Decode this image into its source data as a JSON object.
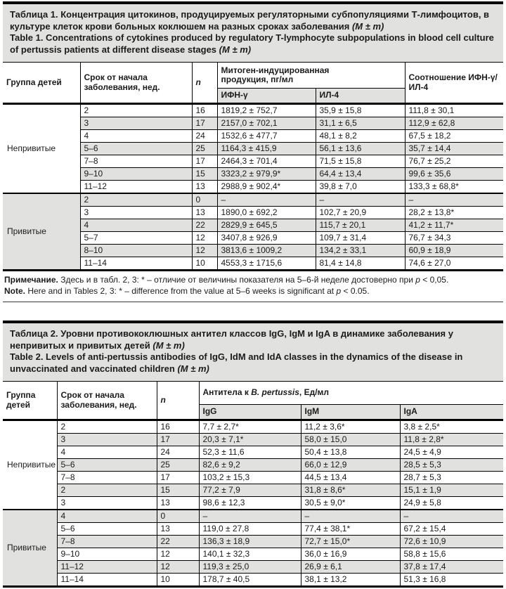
{
  "colors": {
    "shade": "#e1e1e0",
    "rule": "#000000",
    "text": "#1b1b1b",
    "background": "#ffffff"
  },
  "table1": {
    "title_ru": "Таблица 1. Концентрация цитокинов, продуцируемых регуляторными субпопуляциями Т-лимфоцитов, в культуре клеток крови больных коклюшем на разных сроках заболевания",
    "title_ru_mm": "(M ± m)",
    "title_en": "Table 1. Concentrations of cytokines produced by regulatory T-lymphocyte subpopulations in blood cell culture of pertussis patients at different disease stages",
    "title_en_mm": "(M ± m)",
    "header": {
      "group": "Группа детей",
      "term": "Срок от начала заболевания, нед.",
      "n": "n",
      "production": "Митоген-индуцированная продукция, пг/мл",
      "ifn": "ИФН-γ",
      "il4": "ИЛ-4",
      "ratio": "Соотношение ИФН-γ/ИЛ-4"
    },
    "groups": [
      {
        "label": "Непривитые",
        "rows": [
          [
            "2",
            "16",
            "1819,2 ± 752,7",
            "35,9 ± 15,8",
            "111,8 ± 30,1"
          ],
          [
            "3",
            "17",
            "2157,0 ± 702,1",
            "31,1 ± 6,5",
            "112,9 ± 62,8"
          ],
          [
            "4",
            "24",
            "1532,6 ± 477,7",
            "48,1 ± 8,2",
            "67,5 ± 18,2"
          ],
          [
            "5–6",
            "25",
            "1164,3 ± 415,9",
            "56,1 ± 13,6",
            "35,7 ± 14,4"
          ],
          [
            "7–8",
            "17",
            "2464,3 ± 701,4",
            "71,5 ± 15,8",
            "76,7 ± 25,2"
          ],
          [
            "9–10",
            "15",
            "3323,2 ± 979,9*",
            "64,4 ± 13,4",
            "99,6 ± 35,6"
          ],
          [
            "11–12",
            "13",
            "2988,9 ± 902,4*",
            "39,8 ± 7,0",
            "133,3 ± 68,8*"
          ]
        ]
      },
      {
        "label": "Привитые",
        "rows": [
          [
            "2",
            "0",
            "–",
            "–",
            "–"
          ],
          [
            "3",
            "13",
            "1890,0 ± 692,2",
            "102,7 ± 20,9",
            "28,2 ± 13,8*"
          ],
          [
            "4",
            "22",
            "2829,9 ± 645,5",
            "115,7 ± 20,1",
            "41,2 ± 11,7*"
          ],
          [
            "5–7",
            "12",
            "3407,8 ± 926,9",
            "109,7 ± 31,4",
            "76,7 ± 34,3"
          ],
          [
            "8–10",
            "12",
            "3813,6 ± 1009,2",
            "134,2 ± 33,1",
            "60,9 ± 18,9"
          ],
          [
            "11–14",
            "10",
            "4553,3 ± 1715,6",
            "81,4 ± 14,8",
            "74,6 ± 27,0"
          ]
        ]
      }
    ]
  },
  "note": {
    "ru_label": "Примечание.",
    "ru_text": " Здесь и в табл. 2, 3: * – отличие от величины показателя на 5–6-й неделе достоверно при ",
    "ru_p": "p",
    "ru_tail": " < 0,05.",
    "en_label": "Note.",
    "en_text": " Here and in Tables 2, 3: * – difference from the value at 5–6 weeks is significant at ",
    "en_p": "p",
    "en_tail": " < 0.05."
  },
  "table2": {
    "title_ru": "Таблица 2. Уровни противококлюшных антител классов IgG, IgM и IgA в динамике заболевания у непривитых и привитых детей",
    "title_ru_mm": "(M ± m)",
    "title_en": "Table 2. Levels of anti-pertussis antibodies of IgG, IdM and IdA classes in the dynamics of the disease in unvaccinated and vaccinated children",
    "title_en_mm": "(M ± m)",
    "header": {
      "group": "Группа детей",
      "term": "Срок от начала заболевания, нед.",
      "n": "n",
      "antibodies_pre": "Антитела к ",
      "antibodies_it": "B. pertussis",
      "antibodies_post": ", Ед/мл",
      "igg": "IgG",
      "igm": "IgM",
      "iga": "IgA"
    },
    "groups": [
      {
        "label": "Непривитые",
        "rows": [
          [
            "2",
            "16",
            "7,7 ± 2,7*",
            "11,2 ± 3,6*",
            "3,8 ± 2,5*"
          ],
          [
            "3",
            "17",
            "20,3 ± 7,1*",
            "58,0 ± 15,0",
            "11,8 ± 2,8*"
          ],
          [
            "4",
            "24",
            "52,3 ± 11,6",
            "50,4 ± 13,8",
            "24,5 ± 4,9"
          ],
          [
            "5–6",
            "25",
            "82,6 ± 9,2",
            "66,0 ± 12,9",
            "28,5 ± 5,3"
          ],
          [
            "7–8",
            "17",
            "103,2 ± 15,3",
            "44,5 ± 13,4",
            "28,7 ± 5,3"
          ],
          [
            "2",
            "15",
            "77,2 ± 7,9",
            "31,8 ± 8,6*",
            "15,1 ± 1,9"
          ],
          [
            "3",
            "13",
            "98,6 ± 12,3",
            "30,5 ± 9,0*",
            "24,9 ± 5,8"
          ]
        ]
      },
      {
        "label": "Привитые",
        "rows": [
          [
            "4",
            "0",
            "–",
            "–",
            "–"
          ],
          [
            "5–6",
            "13",
            "119,0 ± 27,8",
            "77,4 ± 38,1*",
            "67,2 ± 15,4"
          ],
          [
            "7–8",
            "22",
            "136,3 ± 18,9",
            "72,7 ± 15,0*",
            "72,6 ± 10,9"
          ],
          [
            "9–10",
            "12",
            "140,1 ± 32,3",
            "36,0 ± 16,9",
            "58,8 ± 15,6"
          ],
          [
            "11–12",
            "12",
            "119,3 ± 25,0",
            "26,9 ± 6,1",
            "37,8 ± 17,4"
          ],
          [
            "11–14",
            "10",
            "178,7 ± 40,5",
            "38,1 ± 13,2",
            "51,3 ± 16,8"
          ]
        ]
      }
    ]
  }
}
